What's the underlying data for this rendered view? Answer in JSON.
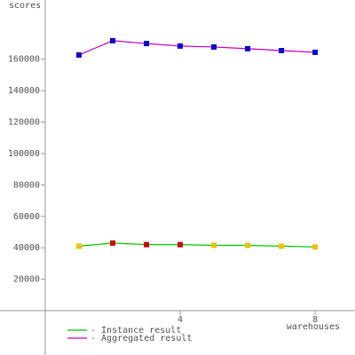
{
  "chart_data": {
    "type": "line",
    "y_label": "scores",
    "x_label": "warehouses",
    "x": [
      1,
      2,
      3,
      4,
      5,
      6,
      7,
      8
    ],
    "xlim": [
      -1.34,
      9.18
    ],
    "xticks": [
      4,
      8
    ],
    "ylim": [
      -28250,
      197700
    ],
    "yticks": [
      20000,
      40000,
      60000,
      80000,
      100000,
      120000,
      140000,
      160000
    ],
    "series": [
      {
        "name": "- Instance result",
        "color": "#00cc00",
        "values": [
          41000,
          43000,
          42000,
          42000,
          41500,
          41500,
          41000,
          40500
        ],
        "marker_colors": [
          "#f0c000",
          "#cc0000",
          "#cc0000",
          "#cc0000",
          "#f0c000",
          "#f0c000",
          "#f0c000",
          "#f0c000"
        ]
      },
      {
        "name": "- Aggregated result",
        "color": "#cc00cc",
        "values": [
          162700,
          171800,
          170000,
          168400,
          167800,
          166700,
          165500,
          164400
        ],
        "marker_colors": [
          "#0000cc",
          "#0000cc",
          "#0000cc",
          "#0000cc",
          "#0000cc",
          "#0000cc",
          "#0000cc",
          "#0000cc"
        ]
      }
    ]
  }
}
